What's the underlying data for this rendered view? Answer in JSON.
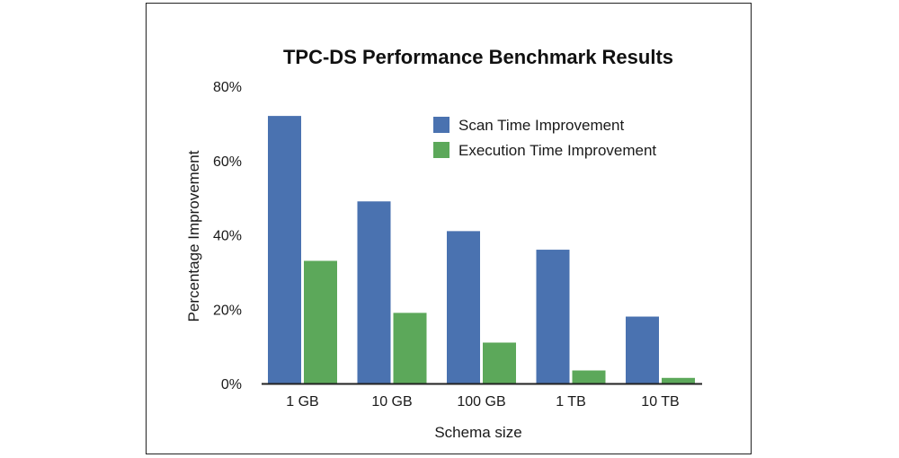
{
  "chart_data": {
    "type": "bar",
    "title": "TPC-DS Performance Benchmark Results",
    "xlabel": "Schema size",
    "ylabel": "Percentage Improvement",
    "categories": [
      "1 GB",
      "10 GB",
      "100 GB",
      "1 TB",
      "10 TB"
    ],
    "series": [
      {
        "name": "Scan Time Improvement",
        "color": "#4a72b0",
        "values": [
          72,
          49,
          41,
          36,
          18
        ]
      },
      {
        "name": "Execution Time Improvement",
        "color": "#5ca85a",
        "values": [
          33,
          19,
          11,
          3.5,
          1.5
        ]
      }
    ],
    "ylim": [
      0,
      80
    ],
    "yticks": [
      0,
      20,
      40,
      60,
      80
    ],
    "ytick_labels": [
      "0%",
      "20%",
      "40%",
      "60%",
      "80%"
    ],
    "grid": false,
    "legend_position": "top-right"
  }
}
